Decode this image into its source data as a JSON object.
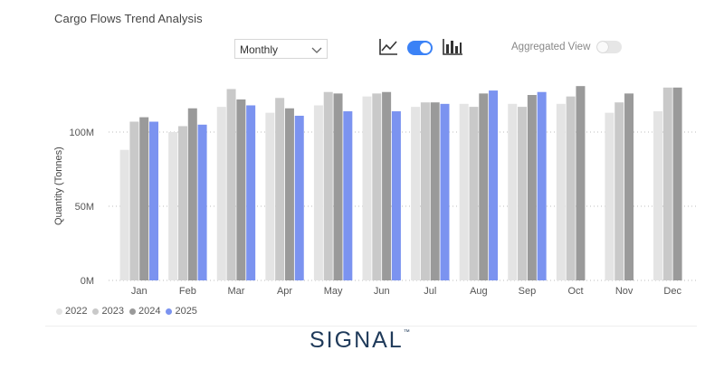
{
  "header": {
    "title": "Cargo Flows Trend Analysis"
  },
  "controls": {
    "period_select": {
      "value": "Monthly"
    },
    "line_chart_icon": "line-chart-icon",
    "bar_chart_icon": "bar-chart-icon",
    "chart_type_toggle_on": true,
    "aggregated_label": "Aggregated View",
    "aggregated_toggle_on": false
  },
  "colors": {
    "2022": "#e4e4e4",
    "2023": "#c9c9c9",
    "2024": "#9a9a9a",
    "2025": "#7b93f0",
    "accent": "#3b82f6",
    "logo": "#1f3a5a"
  },
  "chart_data": {
    "type": "bar",
    "title": "Cargo Flows Trend Analysis",
    "ylabel": "Quantity (Tonnes)",
    "xlabel": "",
    "ylim": [
      0,
      125000000
    ],
    "yticks": [
      0,
      50000000,
      100000000
    ],
    "yticklabels": [
      "0M",
      "50M",
      "100M"
    ],
    "categories": [
      "Jan",
      "Feb",
      "Mar",
      "Apr",
      "May",
      "Jun",
      "Jul",
      "Aug",
      "Sep",
      "Oct",
      "Nov",
      "Dec"
    ],
    "series": [
      {
        "name": "2022",
        "values": [
          88000000,
          100000000,
          117000000,
          113000000,
          118000000,
          124000000,
          117000000,
          119000000,
          119000000,
          119000000,
          113000000,
          114000000
        ]
      },
      {
        "name": "2023",
        "values": [
          107000000,
          104000000,
          129000000,
          123000000,
          127000000,
          126000000,
          120000000,
          117000000,
          117000000,
          124000000,
          120000000,
          130000000
        ]
      },
      {
        "name": "2024",
        "values": [
          110000000,
          116000000,
          122000000,
          116000000,
          126000000,
          127000000,
          120000000,
          126000000,
          125000000,
          131000000,
          126000000,
          130000000
        ]
      },
      {
        "name": "2025",
        "values": [
          107000000,
          105000000,
          118000000,
          111000000,
          114000000,
          114000000,
          119000000,
          128000000,
          127000000,
          null,
          null,
          null
        ]
      }
    ],
    "grid": true,
    "legend": "bottom-left"
  },
  "footer": {
    "logo_text": "SIGNAL",
    "logo_mark": "™"
  }
}
